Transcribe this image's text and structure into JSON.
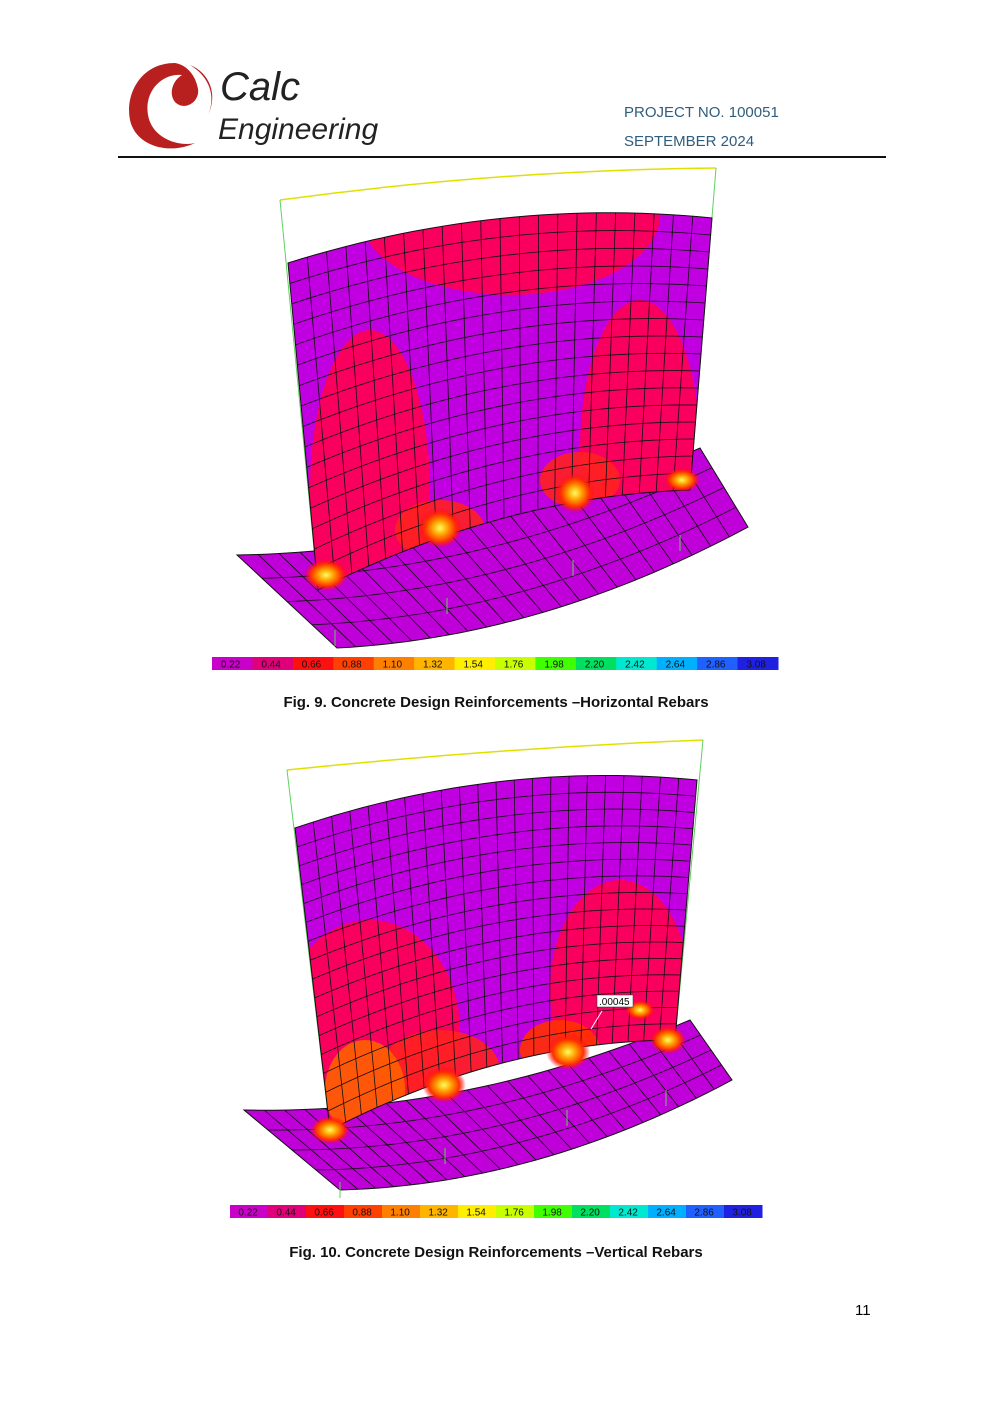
{
  "header": {
    "logo": {
      "line1": "Calc",
      "line2": "Engineering"
    },
    "project": "PROJECT NO. 100051",
    "date": "SEPTEMBER 2024"
  },
  "figures": [
    {
      "legend": [
        "0.22",
        "0.44",
        "0.66",
        "0.88",
        "1.10",
        "1.32",
        "1.54",
        "1.76",
        "1.98",
        "2.20",
        "2.42",
        "2.64",
        "2.86",
        "3.08"
      ],
      "caption": "Fig. 9. Concrete Design Reinforcements –Horizontal Rebars"
    },
    {
      "legend": [
        "0.22",
        "0.44",
        "0.66",
        "0.88",
        "1.10",
        "1.32",
        "1.54",
        "1.76",
        "1.98",
        "2.20",
        "2.42",
        "2.64",
        "2.86",
        "3.08"
      ],
      "annotation": ".00045",
      "caption": "Fig. 10. Concrete Design Reinforcements –Vertical Rebars"
    }
  ],
  "page_number": "11"
}
